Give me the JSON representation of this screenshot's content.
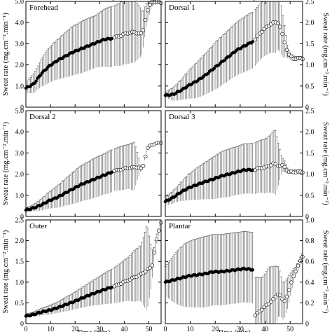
{
  "chart_data": [
    {
      "type": "scatter",
      "title": "Forehead",
      "ylabel_left": "Sweat rate (mg.cm⁻².min⁻¹)",
      "ylim": [
        0,
        5
      ],
      "yticks": [
        "0",
        "1.0",
        "2.0",
        "3.0",
        "4.0",
        "5.0"
      ],
      "filled": {
        "t0": 0,
        "t1": 35,
        "y": [
          0.9,
          1.1,
          1.6,
          1.95,
          2.2,
          2.4,
          2.6,
          2.75,
          2.9,
          3.05,
          3.2,
          3.25
        ]
      },
      "open": {
        "t0": 36,
        "t1": 55,
        "y": [
          3.3,
          3.35,
          3.45,
          3.5,
          3.55,
          3.5,
          3.45,
          4.5,
          5.0,
          5.0,
          4.95
        ]
      },
      "error": [
        0.25,
        0.45,
        0.6,
        0.8,
        0.9,
        1.0,
        1.1,
        1.2,
        1.25,
        1.3,
        1.3,
        1.3,
        1.4,
        1.5,
        1.5,
        1.6,
        1.6,
        1.6,
        1.2,
        0.5,
        0.2,
        0.1
      ]
    },
    {
      "type": "scatter",
      "title": "Dorsal 1",
      "ylabel_right": "Sweat rate (mg.cm⁻².min⁻¹)",
      "ylim": [
        0,
        2.5
      ],
      "yticks": [
        "0",
        "0.5",
        "1.0",
        "1.5",
        "2.0",
        "2.5"
      ],
      "filled": {
        "t0": 0,
        "t1": 35,
        "y": [
          0.28,
          0.3,
          0.4,
          0.52,
          0.62,
          0.75,
          0.9,
          1.05,
          1.2,
          1.35,
          1.45,
          1.55
        ]
      },
      "open": {
        "t0": 36,
        "t1": 55,
        "y": [
          1.6,
          1.75,
          1.85,
          1.95,
          2.0,
          2.0,
          1.6,
          1.25,
          1.15,
          1.15,
          1.15
        ]
      },
      "error": [
        0.06,
        0.15,
        0.22,
        0.3,
        0.38,
        0.45,
        0.5,
        0.55,
        0.6,
        0.62,
        0.64,
        0.66,
        0.68,
        0.7,
        0.7,
        0.7,
        0.75,
        0.8,
        0.6,
        0.1,
        0.05,
        0.05
      ]
    },
    {
      "type": "scatter",
      "title": "Dorsal 2",
      "ylabel_left": "Sweat rate (mg.cm⁻².min⁻¹)",
      "ylim": [
        0,
        5
      ],
      "yticks": [
        "0",
        "1.0",
        "2.0",
        "3.0",
        "4.0",
        "5.0"
      ],
      "filled": {
        "t0": 0,
        "t1": 35,
        "y": [
          0.3,
          0.4,
          0.55,
          0.75,
          0.9,
          1.1,
          1.3,
          1.5,
          1.65,
          1.8,
          1.95,
          2.1
        ]
      },
      "open": {
        "t0": 36,
        "t1": 55,
        "y": [
          2.15,
          2.2,
          2.25,
          2.3,
          2.3,
          2.35,
          2.2,
          3.2,
          3.4,
          3.45,
          3.5
        ]
      },
      "error": [
        0.1,
        0.15,
        0.25,
        0.35,
        0.45,
        0.55,
        0.65,
        0.75,
        0.85,
        0.9,
        0.95,
        1.0,
        1.0,
        1.05,
        1.05,
        1.1,
        1.1,
        1.2,
        0.1,
        0.05,
        0.05,
        0.05
      ]
    },
    {
      "type": "scatter",
      "title": "Dorsal 3",
      "ylabel_right": "Sweat rate (mg.cm⁻².min⁻¹)",
      "ylim": [
        0,
        2.5
      ],
      "yticks": [
        "0",
        "0.5",
        "1.0",
        "1.5",
        "2.0",
        "2.5"
      ],
      "filled": {
        "t0": 0,
        "t1": 35,
        "y": [
          0.35,
          0.45,
          0.58,
          0.68,
          0.75,
          0.82,
          0.88,
          0.95,
          1.0,
          1.05,
          1.1,
          1.1
        ]
      },
      "open": {
        "t0": 36,
        "t1": 55,
        "y": [
          1.1,
          1.15,
          1.15,
          1.2,
          1.25,
          1.2,
          1.2,
          1.05,
          1.05,
          1.05,
          1.05
        ]
      },
      "error": [
        0.1,
        0.15,
        0.2,
        0.28,
        0.35,
        0.4,
        0.45,
        0.5,
        0.55,
        0.58,
        0.6,
        0.6,
        0.62,
        0.62,
        0.64,
        0.66,
        0.7,
        0.8,
        0.2,
        0.05,
        0.05,
        0.05
      ]
    },
    {
      "type": "scatter",
      "title": "Outer",
      "ylabel_left": "Sweat rate (mg.cm⁻².min⁻¹)",
      "xlabel": "Time (min)",
      "ylim": [
        0,
        2.5
      ],
      "yticks": [
        "0",
        "0.5",
        "1.0",
        "1.5",
        "2.0",
        "2.5"
      ],
      "xlim": [
        0,
        55
      ],
      "xticks": [
        "0",
        "10",
        "20",
        "30",
        "40",
        "50"
      ],
      "filled": {
        "t0": 0,
        "t1": 35,
        "y": [
          0.18,
          0.22,
          0.28,
          0.32,
          0.38,
          0.45,
          0.52,
          0.6,
          0.68,
          0.75,
          0.82,
          0.88
        ]
      },
      "open": {
        "t0": 36,
        "t1": 55,
        "y": [
          0.9,
          0.95,
          1.0,
          1.05,
          1.1,
          1.15,
          1.2,
          1.3,
          1.35,
          2.0,
          2.45
        ]
      },
      "error": [
        0.05,
        0.06,
        0.08,
        0.1,
        0.12,
        0.14,
        0.17,
        0.2,
        0.23,
        0.26,
        0.3,
        0.34,
        0.38,
        0.42,
        0.46,
        0.5,
        0.55,
        0.65,
        0.7,
        1.1,
        0.2,
        0.05
      ]
    },
    {
      "type": "scatter",
      "title": "Plantar",
      "ylabel_right": "Sweat rate (mg.cm⁻².min⁻¹)",
      "xlabel": "Time (min)",
      "ylim": [
        0,
        1
      ],
      "yticks": [
        "0",
        "0.2",
        "0.4",
        "0.6",
        "0.8",
        "1.0"
      ],
      "xlim": [
        0,
        55
      ],
      "xticks": [
        "0",
        "10",
        "20",
        "30",
        "40",
        "50"
      ],
      "filled": {
        "t0": 0,
        "t1": 35,
        "y": [
          0.4,
          0.42,
          0.44,
          0.46,
          0.47,
          0.48,
          0.5,
          0.5,
          0.51,
          0.52,
          0.53,
          0.52
        ]
      },
      "open": {
        "t0": 36,
        "t1": 55,
        "y": [
          0.08,
          0.12,
          0.16,
          0.2,
          0.24,
          0.3,
          0.2,
          0.3,
          0.45,
          0.55,
          0.65
        ]
      },
      "error": [
        0.15,
        0.22,
        0.28,
        0.32,
        0.34,
        0.35,
        0.36,
        0.36,
        0.36,
        0.36,
        0.36,
        0.36,
        0.36,
        0.36,
        0.36,
        0.3,
        0.35,
        0.3,
        0.2,
        0.15,
        0.05,
        0.05
      ]
    }
  ]
}
